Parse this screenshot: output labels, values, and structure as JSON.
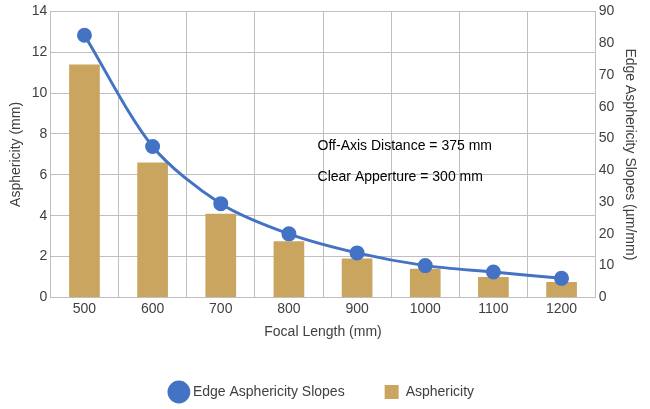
{
  "chart_data": {
    "type": "bar",
    "x_label": "Focal Length (mm)",
    "y_label": "Asphericity (mm)",
    "y2_label": "Edge Asphericity Slopes (µm/mm)",
    "categories": [
      500,
      600,
      700,
      800,
      900,
      1000,
      1100,
      1200
    ],
    "series": [
      {
        "name": "Edge Asphericity Slopes",
        "type": "line",
        "axis": "y2",
        "color": "#4472c4",
        "marker": "circle",
        "values": [
          82.5,
          47.5,
          29.5,
          20,
          14,
          10,
          8,
          6
        ]
      },
      {
        "name": "Asphericity",
        "type": "bar",
        "color": "#c9a55f",
        "values": [
          11.4,
          6.6,
          4.1,
          2.75,
          1.9,
          1.4,
          1.0,
          0.75
        ]
      }
    ],
    "ylim": [
      0,
      14
    ],
    "yticks": [
      0,
      2,
      4,
      6,
      8,
      10,
      12,
      14
    ],
    "y2lim": [
      0,
      90
    ],
    "y2ticks": [
      0,
      10,
      20,
      30,
      40,
      50,
      60,
      70,
      80,
      90
    ],
    "annotations": [
      "Off-Axis Distance = 375 mm",
      "Clear Apperture = 300 mm"
    ],
    "grid": true,
    "legend": "bottom"
  }
}
